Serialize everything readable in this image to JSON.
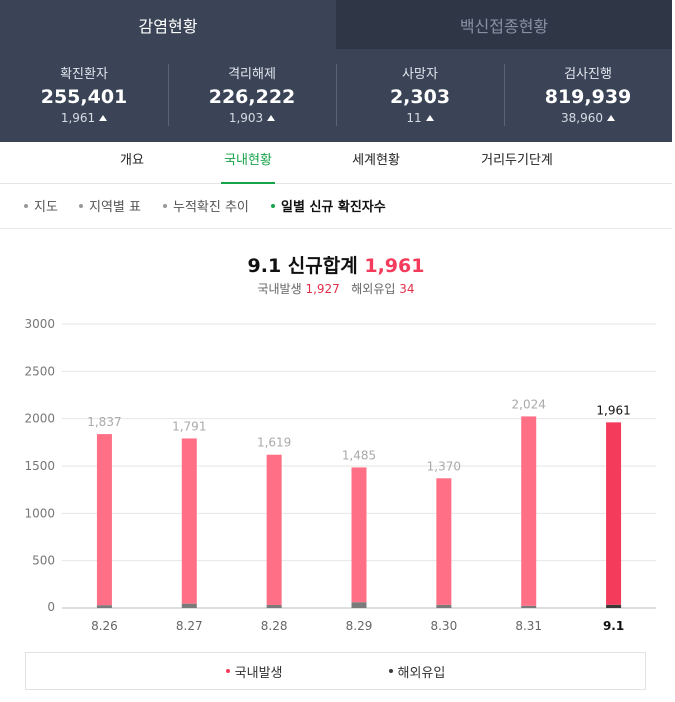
{
  "top_tabs": [
    {
      "label": "감염현황",
      "active": true
    },
    {
      "label": "백신접종현황",
      "active": false
    }
  ],
  "stats": [
    {
      "label": "확진환자",
      "value": "255,401",
      "delta": "1,961"
    },
    {
      "label": "격리해제",
      "value": "226,222",
      "delta": "1,903"
    },
    {
      "label": "사망자",
      "value": "2,303",
      "delta": "11"
    },
    {
      "label": "검사진행",
      "value": "819,939",
      "delta": "38,960"
    }
  ],
  "sub_tabs": [
    {
      "label": "개요",
      "active": false
    },
    {
      "label": "국내현황",
      "active": true
    },
    {
      "label": "세계현황",
      "active": false
    },
    {
      "label": "거리두기단계",
      "active": false
    }
  ],
  "view_tabs": [
    {
      "label": "지도",
      "active": false
    },
    {
      "label": "지역별 표",
      "active": false
    },
    {
      "label": "누적확진 추이",
      "active": false
    },
    {
      "label": "일별 신규 확진자수",
      "active": true
    }
  ],
  "summary": {
    "title_prefix": "9.1 신규합계",
    "total": "1,961",
    "domestic_label": "국내발생",
    "domestic_value": "1,927",
    "overseas_label": "해외유입",
    "overseas_value": "34"
  },
  "colors": {
    "domestic": "#ff7086",
    "domestic_latest": "#f43b5c",
    "overseas": "#7a7a7a",
    "overseas_latest": "#3a3a3a",
    "accent": "#16a34a",
    "header_bg": "#3a4456"
  },
  "chart_data": {
    "type": "bar",
    "stacked": true,
    "categories": [
      "8.26",
      "8.27",
      "8.28",
      "8.29",
      "8.30",
      "8.31",
      "9.1"
    ],
    "totals": [
      1837,
      1791,
      1619,
      1485,
      1370,
      2024,
      1961
    ],
    "total_labels": [
      "1,837",
      "1,791",
      "1,619",
      "1,485",
      "1,370",
      "2,024",
      "1,961"
    ],
    "series": [
      {
        "name": "국내발생",
        "values": [
          1807,
          1745,
          1587,
          1424,
          1337,
          2001,
          1927
        ]
      },
      {
        "name": "해외유입",
        "values": [
          30,
          46,
          32,
          61,
          33,
          23,
          34
        ]
      }
    ],
    "y_ticks": [
      0,
      500,
      1000,
      1500,
      2000,
      2500,
      3000
    ],
    "ylim": [
      0,
      3000
    ],
    "grid": true,
    "legend_position": "bottom",
    "highlight_index": 6
  }
}
